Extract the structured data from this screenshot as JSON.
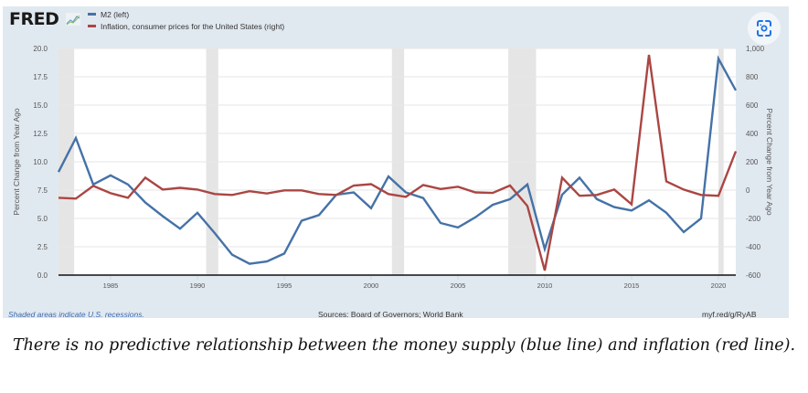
{
  "header": {
    "logo_text": "FRED",
    "legend": [
      {
        "label": "M2 (left)",
        "color": "#4572a7"
      },
      {
        "label": "Inflation, consumer prices for the United States (right)",
        "color": "#aa4643"
      }
    ],
    "snapshot_icon": "visual-search-icon"
  },
  "chart_data": {
    "type": "line",
    "title": "",
    "xlabel": "",
    "ylabel_left": "Percent Change from Year Ago",
    "ylabel_right": "Percent Change from Year Ago",
    "x": [
      1982,
      1983,
      1984,
      1985,
      1986,
      1987,
      1988,
      1989,
      1990,
      1991,
      1992,
      1993,
      1994,
      1995,
      1996,
      1997,
      1998,
      1999,
      2000,
      2001,
      2002,
      2003,
      2004,
      2005,
      2006,
      2007,
      2008,
      2009,
      2010,
      2011,
      2012,
      2013,
      2014,
      2015,
      2016,
      2017,
      2018,
      2019,
      2020,
      2021
    ],
    "xlim": [
      1982,
      2021
    ],
    "x_ticks": [
      "1985",
      "1990",
      "1995",
      "2000",
      "2005",
      "2010",
      "2015",
      "2020"
    ],
    "ylim_left": [
      0,
      20
    ],
    "y_ticks_left": [
      "0.0",
      "2.5",
      "5.0",
      "7.5",
      "10.0",
      "12.5",
      "15.0",
      "17.5",
      "20.0"
    ],
    "ylim_right": [
      -600,
      1000
    ],
    "y_ticks_right": [
      "-600",
      "-400",
      "-200",
      "0",
      "200",
      "400",
      "600",
      "800",
      "1,000"
    ],
    "grid": true,
    "recessions": [
      [
        1982.0,
        1982.9
      ],
      [
        1990.5,
        1991.2
      ],
      [
        2001.2,
        2001.9
      ],
      [
        2007.9,
        2009.5
      ],
      [
        2020.0,
        2020.3
      ]
    ],
    "series": [
      {
        "name": "M2 (left)",
        "axis": "left",
        "color": "#4572a7",
        "values": [
          9.1,
          12.1,
          8.0,
          8.8,
          8.0,
          6.4,
          5.2,
          4.1,
          5.5,
          3.7,
          1.8,
          1.0,
          1.2,
          1.9,
          4.8,
          5.3,
          7.1,
          7.3,
          5.9,
          8.7,
          7.3,
          6.8,
          4.6,
          4.2,
          5.1,
          6.2,
          6.7,
          8.0,
          2.3,
          7.1,
          8.6,
          6.7,
          6.0,
          5.7,
          6.6,
          5.5,
          3.8,
          5.0,
          19.1,
          16.3
        ]
      },
      {
        "name": "Inflation, consumer prices for the United States (right)",
        "axis": "right",
        "color": "#aa4643",
        "values": [
          -54,
          -60,
          30,
          -22,
          -54,
          88,
          4,
          16,
          4,
          -28,
          -34,
          -8,
          -24,
          -2,
          -2,
          -28,
          -34,
          32,
          42,
          -28,
          -48,
          36,
          8,
          24,
          -16,
          -20,
          32,
          -112,
          -568,
          88,
          -40,
          -34,
          4,
          -100,
          955,
          62,
          4,
          -34,
          -40,
          274
        ]
      }
    ]
  },
  "footer": {
    "recession_note": "Shaded areas indicate U.S. recessions.",
    "sources": "Sources: Board of Governors; World Bank",
    "short_url": "myf.red/g/RyAB"
  },
  "caption": "There is no predictive relationship between the money supply (blue line) and inflation (red line)."
}
